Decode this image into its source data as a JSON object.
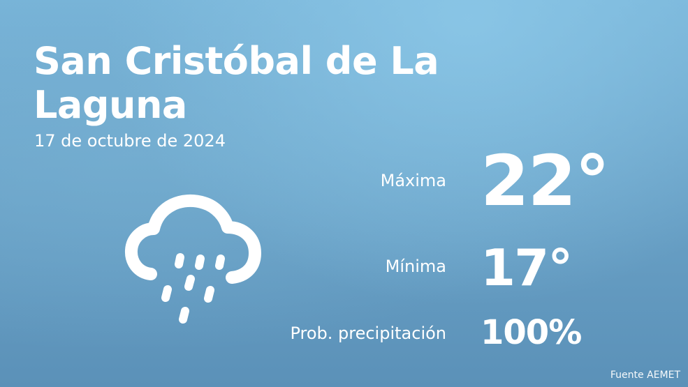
{
  "location": {
    "city": "San Cristóbal de La Laguna",
    "date": "17 de octubre de 2024"
  },
  "forecast": {
    "max_label": "Máxima",
    "max_value": "22°",
    "min_label": "Mínima",
    "min_value": "17°",
    "precip_label": "Prob. precipitación",
    "precip_value": "100%",
    "condition_icon": "rain-cloud-icon"
  },
  "footer": {
    "source": "Fuente AEMET"
  },
  "colors": {
    "background_top": "#78b4d8",
    "background_bottom": "#5b91b8",
    "text": "#ffffff"
  }
}
